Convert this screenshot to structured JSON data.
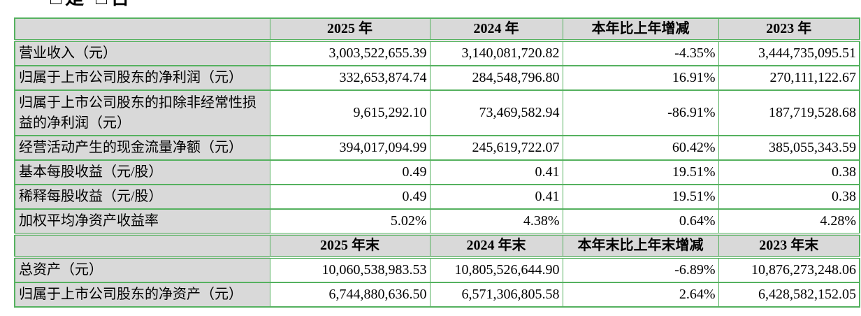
{
  "page": {
    "top_note": "□是 □否"
  },
  "table": {
    "section1": {
      "headers": {
        "blank": "",
        "c2025": "2025 年",
        "c2024": "2024 年",
        "change": "本年比上年增减",
        "c2023": "2023 年"
      },
      "rows": [
        {
          "label": "营业收入（元）",
          "y2025": "3,003,522,655.39",
          "y2024": "3,140,081,720.82",
          "change": "-4.35%",
          "y2023": "3,444,735,095.51"
        },
        {
          "label": "归属于上市公司股东的净利润（元）",
          "y2025": "332,653,874.74",
          "y2024": "284,548,796.80",
          "change": "16.91%",
          "y2023": "270,111,122.67"
        },
        {
          "label": "归属于上市公司股东的扣除非经常性损益的净利润（元）",
          "y2025": "9,615,292.10",
          "y2024": "73,469,582.94",
          "change": "-86.91%",
          "y2023": "187,719,528.68"
        },
        {
          "label": "经营活动产生的现金流量净额（元）",
          "y2025": "394,017,094.99",
          "y2024": "245,619,722.07",
          "change": "60.42%",
          "y2023": "385,055,343.59"
        },
        {
          "label": "基本每股收益（元/股）",
          "y2025": "0.49",
          "y2024": "0.41",
          "change": "19.51%",
          "y2023": "0.38"
        },
        {
          "label": "稀释每股收益（元/股）",
          "y2025": "0.49",
          "y2024": "0.41",
          "change": "19.51%",
          "y2023": "0.38"
        },
        {
          "label": "加权平均净资产收益率",
          "y2025": "5.02%",
          "y2024": "4.38%",
          "change": "0.64%",
          "y2023": "4.28%"
        }
      ]
    },
    "section2": {
      "headers": {
        "blank": "",
        "c2025": "2025 年末",
        "c2024": "2024 年末",
        "change": "本年末比上年末增减",
        "c2023": "2023 年末"
      },
      "rows": [
        {
          "label": "总资产（元）",
          "y2025": "10,060,538,983.53",
          "y2024": "10,805,526,644.90",
          "change": "-6.89%",
          "y2023": "10,876,273,248.06"
        },
        {
          "label": "归属于上市公司股东的净资产（元）",
          "y2025": "6,744,880,636.50",
          "y2024": "6,571,306,805.58",
          "change": "2.64%",
          "y2023": "6,428,582,152.05"
        }
      ]
    },
    "colors": {
      "border_green": "#55b15f",
      "header_gray": "#d9d9d9"
    }
  }
}
